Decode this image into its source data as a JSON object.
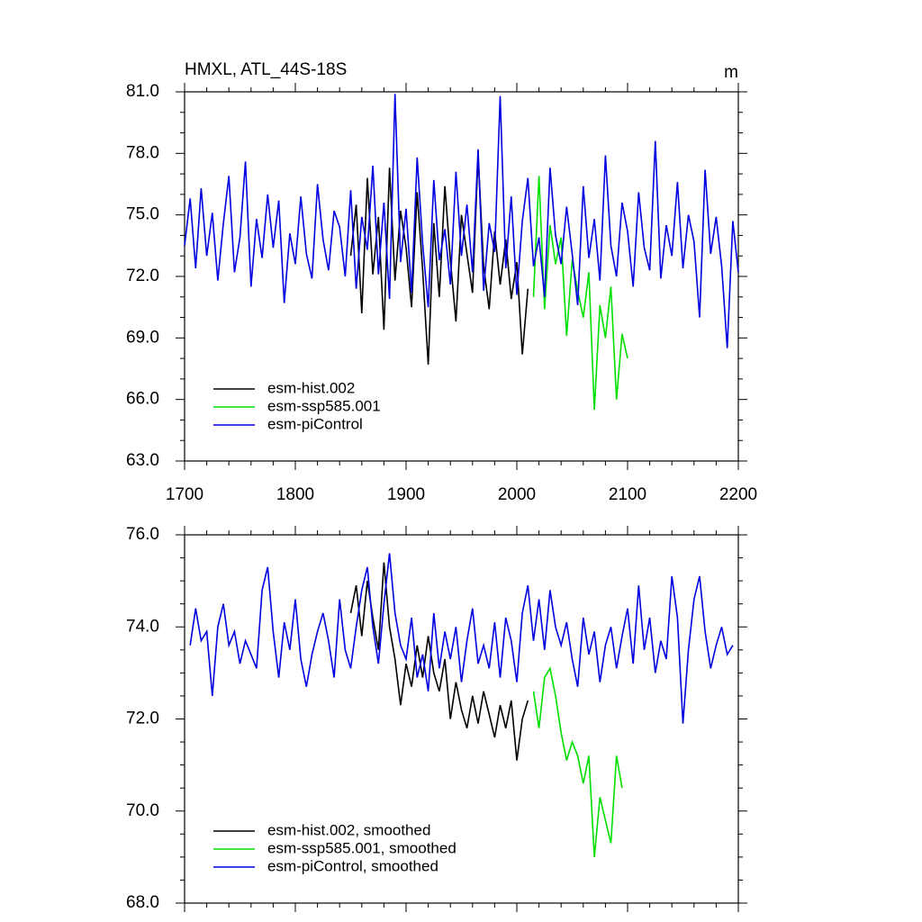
{
  "chart_data": [
    {
      "type": "line",
      "title": "HMXL, ATL_44S-18S",
      "units": "m",
      "xlim": [
        1700,
        2200
      ],
      "xticks": [
        1700,
        1800,
        1900,
        2000,
        2100,
        2200
      ],
      "ylim": [
        63,
        81
      ],
      "yticks": [
        {
          "value": 63,
          "label": "63.0"
        },
        {
          "value": 66,
          "label": "66.0"
        },
        {
          "value": 69,
          "label": "69.0"
        },
        {
          "value": 72,
          "label": "72.0"
        },
        {
          "value": 75,
          "label": "75.0"
        },
        {
          "value": 78,
          "label": "78.0"
        },
        {
          "value": 81,
          "label": "81.0"
        }
      ],
      "legend": "lower left",
      "series": [
        {
          "name": "esm-hist.002",
          "color": "#000000",
          "x": [
            1850,
            1855,
            1860,
            1865,
            1870,
            1875,
            1880,
            1885,
            1890,
            1895,
            1900,
            1905,
            1910,
            1915,
            1920,
            1925,
            1930,
            1935,
            1940,
            1945,
            1950,
            1955,
            1960,
            1965,
            1970,
            1975,
            1980,
            1985,
            1990,
            1995,
            2000,
            2005,
            2010
          ],
          "values": [
            73.0,
            75.5,
            70.2,
            76.8,
            72.1,
            74.9,
            69.4,
            77.3,
            71.8,
            75.2,
            73.4,
            70.5,
            76.1,
            72.3,
            67.7,
            74.6,
            71.0,
            76.4,
            72.8,
            69.8,
            75.0,
            73.1,
            71.2,
            77.9,
            72.5,
            70.4,
            74.2,
            71.6,
            73.8,
            70.9,
            72.7,
            68.2,
            71.4
          ]
        },
        {
          "name": "esm-ssp585.001",
          "color": "#00e000",
          "x": [
            2015,
            2020,
            2025,
            2030,
            2035,
            2040,
            2045,
            2050,
            2055,
            2060,
            2065,
            2070,
            2075,
            2080,
            2085,
            2090,
            2095,
            2100
          ],
          "values": [
            71.0,
            76.9,
            70.4,
            74.5,
            72.6,
            73.9,
            69.1,
            72.8,
            71.3,
            70.0,
            72.2,
            65.5,
            70.6,
            69.0,
            71.5,
            66.0,
            69.2,
            68.0
          ]
        },
        {
          "name": "esm-piControl",
          "color": "#0000e0",
          "x": [
            1700,
            1705,
            1710,
            1715,
            1720,
            1725,
            1730,
            1735,
            1740,
            1745,
            1750,
            1755,
            1760,
            1765,
            1770,
            1775,
            1780,
            1785,
            1790,
            1795,
            1800,
            1805,
            1810,
            1815,
            1820,
            1825,
            1830,
            1835,
            1840,
            1845,
            1850,
            1855,
            1860,
            1865,
            1870,
            1875,
            1880,
            1885,
            1890,
            1895,
            1900,
            1905,
            1910,
            1915,
            1920,
            1925,
            1930,
            1935,
            1940,
            1945,
            1950,
            1955,
            1960,
            1965,
            1970,
            1975,
            1980,
            1985,
            1990,
            1995,
            2000,
            2005,
            2010,
            2015,
            2020,
            2025,
            2030,
            2035,
            2040,
            2045,
            2050,
            2055,
            2060,
            2065,
            2070,
            2075,
            2080,
            2085,
            2090,
            2095,
            2100,
            2105,
            2110,
            2115,
            2120,
            2125,
            2130,
            2135,
            2140,
            2145,
            2150,
            2155,
            2160,
            2165,
            2170,
            2175,
            2180,
            2185,
            2190,
            2195,
            2200
          ],
          "values": [
            73.5,
            75.8,
            72.4,
            76.3,
            73.0,
            75.1,
            71.8,
            74.6,
            76.9,
            72.2,
            73.9,
            77.6,
            71.5,
            74.8,
            72.9,
            76.0,
            73.4,
            75.7,
            70.7,
            74.1,
            72.6,
            75.9,
            73.1,
            71.9,
            76.5,
            73.8,
            72.3,
            75.2,
            74.4,
            72.0,
            76.2,
            71.4,
            74.9,
            73.3,
            77.4,
            72.1,
            75.6,
            70.9,
            80.9,
            72.7,
            75.3,
            71.2,
            77.8,
            73.6,
            70.5,
            76.7,
            72.8,
            74.3,
            71.6,
            77.1,
            73.0,
            75.5,
            72.2,
            78.2,
            71.3,
            74.6,
            73.2,
            80.8,
            72.4,
            75.9,
            71.1,
            74.7,
            76.8,
            72.5,
            73.9,
            71.0,
            77.3,
            74.0,
            72.6,
            75.4,
            73.1,
            70.6,
            76.4,
            72.9,
            74.8,
            71.8,
            77.9,
            73.5,
            72.0,
            75.6,
            74.2,
            71.5,
            76.1,
            73.4,
            72.3,
            78.6,
            71.9,
            74.5,
            73.0,
            76.6,
            72.4,
            75.0,
            73.7,
            70.0,
            77.2,
            73.1,
            74.9,
            72.5,
            68.5,
            74.7,
            72.2
          ]
        }
      ]
    },
    {
      "type": "line",
      "xlim": [
        1700,
        2200
      ],
      "ylim": [
        68,
        76
      ],
      "yticks": [
        {
          "value": 68,
          "label": "68.0"
        },
        {
          "value": 70,
          "label": "70.0"
        },
        {
          "value": 72,
          "label": "72.0"
        },
        {
          "value": 74,
          "label": "74.0"
        },
        {
          "value": 76,
          "label": "76.0"
        }
      ],
      "legend": "lower left",
      "series": [
        {
          "name": "esm-hist.002, smoothed",
          "color": "#000000",
          "x": [
            1850,
            1855,
            1860,
            1865,
            1870,
            1875,
            1880,
            1885,
            1890,
            1895,
            1900,
            1905,
            1910,
            1915,
            1920,
            1925,
            1930,
            1935,
            1940,
            1945,
            1950,
            1955,
            1960,
            1965,
            1970,
            1975,
            1980,
            1985,
            1990,
            1995,
            2000,
            2005,
            2010
          ],
          "values": [
            74.3,
            74.9,
            73.8,
            75.0,
            74.2,
            73.5,
            75.4,
            74.0,
            73.3,
            72.3,
            73.2,
            72.7,
            73.6,
            72.9,
            73.8,
            73.0,
            72.6,
            73.3,
            72.0,
            72.8,
            72.2,
            71.8,
            72.5,
            71.9,
            72.6,
            72.1,
            71.6,
            72.3,
            71.8,
            72.4,
            71.1,
            72.0,
            72.4
          ]
        },
        {
          "name": "esm-ssp585.001, smoothed",
          "color": "#00e000",
          "x": [
            2015,
            2020,
            2025,
            2030,
            2035,
            2040,
            2045,
            2050,
            2055,
            2060,
            2065,
            2070,
            2075,
            2080,
            2085,
            2090,
            2095
          ],
          "values": [
            72.6,
            71.8,
            72.9,
            73.1,
            72.5,
            71.7,
            71.1,
            71.5,
            71.2,
            70.6,
            71.2,
            69.0,
            70.3,
            69.8,
            69.3,
            71.2,
            70.5
          ]
        },
        {
          "name": "esm-piControl, smoothed",
          "color": "#0000e0",
          "x": [
            1705,
            1710,
            1715,
            1720,
            1725,
            1730,
            1735,
            1740,
            1745,
            1750,
            1755,
            1760,
            1765,
            1770,
            1775,
            1780,
            1785,
            1790,
            1795,
            1800,
            1805,
            1810,
            1815,
            1820,
            1825,
            1830,
            1835,
            1840,
            1845,
            1850,
            1855,
            1860,
            1865,
            1870,
            1875,
            1880,
            1885,
            1890,
            1895,
            1900,
            1905,
            1910,
            1915,
            1920,
            1925,
            1930,
            1935,
            1940,
            1945,
            1950,
            1955,
            1960,
            1965,
            1970,
            1975,
            1980,
            1985,
            1990,
            1995,
            2000,
            2005,
            2010,
            2015,
            2020,
            2025,
            2030,
            2035,
            2040,
            2045,
            2050,
            2055,
            2060,
            2065,
            2070,
            2075,
            2080,
            2085,
            2090,
            2095,
            2100,
            2105,
            2110,
            2115,
            2120,
            2125,
            2130,
            2135,
            2140,
            2145,
            2150,
            2155,
            2160,
            2165,
            2170,
            2175,
            2180,
            2185,
            2190,
            2195
          ],
          "values": [
            73.6,
            74.4,
            73.7,
            73.9,
            72.5,
            74.0,
            74.5,
            73.6,
            73.9,
            73.2,
            73.7,
            73.4,
            73.1,
            74.8,
            75.3,
            73.9,
            72.9,
            74.1,
            73.5,
            74.6,
            73.3,
            72.7,
            73.4,
            73.9,
            74.3,
            73.7,
            72.9,
            74.6,
            73.5,
            73.1,
            74.0,
            74.8,
            75.3,
            74.0,
            73.2,
            74.5,
            75.6,
            74.3,
            73.6,
            73.3,
            74.2,
            72.9,
            73.4,
            72.6,
            74.3,
            73.1,
            73.9,
            73.3,
            74.0,
            72.8,
            73.7,
            74.4,
            73.2,
            73.6,
            73.1,
            74.1,
            72.9,
            74.2,
            73.7,
            72.8,
            74.3,
            74.9,
            73.7,
            74.6,
            73.5,
            74.8,
            74.0,
            73.6,
            74.1,
            73.3,
            72.7,
            74.2,
            73.4,
            73.9,
            72.8,
            73.6,
            74.0,
            73.1,
            73.8,
            74.4,
            73.2,
            74.9,
            73.5,
            74.2,
            73.0,
            73.7,
            73.3,
            75.1,
            74.2,
            71.9,
            73.5,
            74.6,
            75.1,
            73.9,
            73.1,
            73.6,
            74.0,
            73.4,
            73.6
          ]
        }
      ]
    }
  ]
}
